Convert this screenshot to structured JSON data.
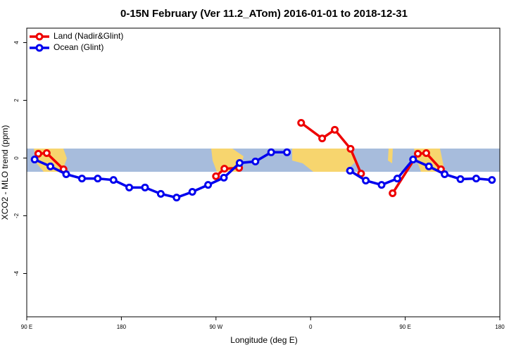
{
  "chart_data": {
    "type": "line",
    "title": "0-15N February (Ver 11.2_ATom)   2016-01-01 to 2018-12-31",
    "x_label": "Longitude (deg E)",
    "y_label": "XCO2 - MLO trend (ppm)",
    "xlim": [
      90,
      540
    ],
    "ylim": [
      -5.5,
      4.5
    ],
    "xticks": [
      {
        "value": 90,
        "label": "90 E"
      },
      {
        "value": 180,
        "label": "180"
      },
      {
        "value": 270,
        "label": "90 W"
      },
      {
        "value": 360,
        "label": "0"
      },
      {
        "value": 450,
        "label": "90 E"
      },
      {
        "value": 540,
        "label": "180"
      }
    ],
    "yticks": [
      -4,
      -2,
      0,
      2,
      4
    ],
    "legend": "top-left",
    "series": [
      {
        "name": "Land (Nadir&Glint)",
        "color": "#ee0000",
        "x": [
          101,
          109,
          125,
          null,
          270,
          278,
          292,
          null,
          351,
          371,
          383,
          398,
          408,
          null,
          438,
          462,
          470,
          484
        ],
        "values": [
          0.15,
          0.17,
          -0.39,
          null,
          -0.63,
          -0.37,
          -0.34,
          null,
          1.22,
          0.68,
          0.98,
          0.32,
          -0.54,
          null,
          -1.22,
          0.15,
          0.17,
          -0.39
        ]
      },
      {
        "name": "Ocean (Glint)",
        "color": "#0000ee",
        "x": [
          97.5,
          112.5,
          127.5,
          142.5,
          157.5,
          172.5,
          187.5,
          202.5,
          217.5,
          232.5,
          247.5,
          262.5,
          277.5,
          292.5,
          307.5,
          322.5,
          337.5,
          352.5,
          367.5,
          382.5,
          397.5,
          412.5,
          427.5,
          442.5,
          457.5,
          472.5,
          487.5,
          502.5,
          517.5,
          532.5
        ],
        "values": [
          -0.05,
          -0.29,
          -0.56,
          -0.71,
          -0.71,
          -0.76,
          -1.02,
          -1.02,
          -1.24,
          -1.37,
          -1.17,
          -0.93,
          -0.68,
          -0.17,
          -0.12,
          0.2,
          0.2,
          null,
          null,
          null,
          -0.44,
          -0.78,
          -0.93,
          -0.71,
          -0.05,
          -0.29,
          -0.56,
          -0.73,
          -0.71,
          -0.76
        ]
      }
    ]
  }
}
